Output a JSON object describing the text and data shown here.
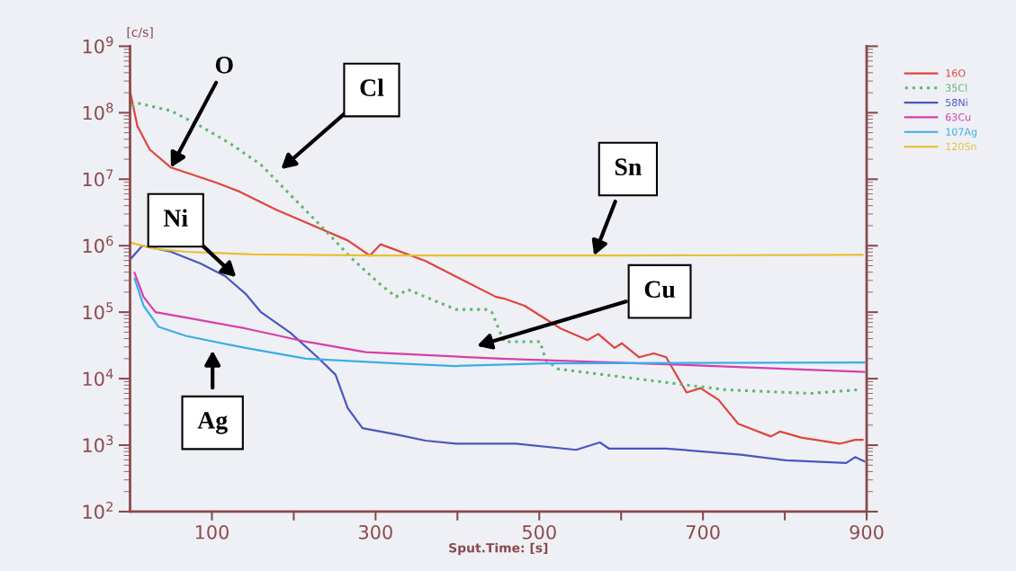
{
  "chart_data": {
    "type": "line",
    "xlabel": "Sput.Time: [s]",
    "ylabel": "[c/s]",
    "log": "y",
    "legend": "right",
    "grid": false,
    "marker": "none",
    "xlim": [
      0,
      900
    ],
    "xticks": [
      {
        "value": 100,
        "label": "100"
      },
      {
        "value": 200,
        "label": null
      },
      {
        "value": 300,
        "label": "300"
      },
      {
        "value": 400,
        "label": null
      },
      {
        "value": 500,
        "label": "500"
      },
      {
        "value": 600,
        "label": null
      },
      {
        "value": 700,
        "label": "700"
      },
      {
        "value": 800,
        "label": null
      },
      {
        "value": 900,
        "label": "900"
      }
    ],
    "ylim": [
      100,
      1000000000
    ],
    "yticks": [
      {
        "value": 100,
        "label": "10$^{2}$"
      },
      {
        "value": 1000,
        "label": "10$^{3}$"
      },
      {
        "value": 10000,
        "label": "10$^{4}$"
      },
      {
        "value": 100000,
        "label": "10$^{5}$"
      },
      {
        "value": 1000000,
        "label": "10$^{6}$"
      },
      {
        "value": 10000000,
        "label": "10$^{7}$"
      },
      {
        "value": 100000000,
        "label": "10$^{8}$"
      },
      {
        "value": 1000000000,
        "label": "10$^{9}$"
      }
    ],
    "series": [
      {
        "name": "16O",
        "color": "#e0453c",
        "line_style": "solid",
        "x": [
          0,
          9,
          24,
          50,
          105,
          134,
          178,
          266,
          293,
          306,
          361,
          447,
          457,
          482,
          526,
          559,
          572,
          592,
          601,
          622,
          640,
          655,
          680,
          697,
          719,
          743,
          783,
          794,
          820,
          867,
          886,
          895
        ],
        "values": [
          210000000,
          63000000,
          28000000,
          15000000,
          8900000,
          6500000,
          3500000,
          1200000,
          710000,
          1050000,
          590000,
          170000,
          160000,
          125000,
          57000,
          38000,
          47000,
          29000,
          34000,
          21000,
          24000,
          21000,
          6200,
          7200,
          4800,
          2100,
          1350,
          1600,
          1300,
          1050,
          1200,
          1200
        ]
      },
      {
        "name": "35Cl",
        "color": "#5fb86a",
        "line_style": "dotted",
        "x": [
          2,
          9,
          50,
          86,
          123,
          160,
          196,
          233,
          270,
          306,
          325,
          339,
          398,
          435,
          442,
          457,
          501,
          508,
          523,
          618,
          728,
          831,
          889
        ],
        "values": [
          125000000,
          140000000,
          107000000,
          63000000,
          34000000,
          16500000,
          5800000,
          2000000,
          660000,
          260000,
          170000,
          220000,
          110000,
          110000,
          100000,
          36000,
          36000,
          19000,
          14000,
          10000,
          6800,
          6000,
          6800
        ]
      },
      {
        "name": "58Ni",
        "color": "#4a56c0",
        "line_style": "solid",
        "x": [
          2,
          15,
          50,
          86,
          116,
          141,
          160,
          196,
          229,
          251,
          266,
          284,
          325,
          361,
          398,
          453,
          471,
          545,
          574,
          585,
          655,
          746,
          801,
          875,
          886,
          897
        ],
        "values": [
          660000,
          1000000,
          810000,
          540000,
          350000,
          190000,
          100000,
          49000,
          21000,
          11500,
          3600,
          1800,
          1450,
          1170,
          1050,
          1050,
          1050,
          850,
          1100,
          890,
          890,
          720,
          590,
          540,
          660,
          570
        ]
      },
      {
        "name": "63Cu",
        "color": "#d63fa8",
        "line_style": "solid",
        "x": [
          5.5,
          16.5,
          31,
          68,
          141,
          215,
          288,
          453,
          655,
          897
        ],
        "values": [
          390000,
          170000,
          100000,
          83000,
          57000,
          36000,
          25000,
          20000,
          16500,
          12600
        ]
      },
      {
        "name": "107Ag",
        "color": "#3aaee8",
        "line_style": "solid",
        "x": [
          5.5,
          16.5,
          35,
          68,
          141,
          215,
          325,
          398,
          508,
          897
        ],
        "values": [
          320000,
          125000,
          60000,
          44000,
          29000,
          20000,
          17000,
          15500,
          17000,
          17500
        ]
      },
      {
        "name": "120Sn",
        "color": "#e8c030",
        "line_style": "solid",
        "x": [
          2,
          30,
          68,
          150,
          300,
          600,
          895
        ],
        "values": [
          1100000,
          900000,
          810000,
          740000,
          710000,
          710000,
          730000
        ]
      }
    ],
    "annotations": [
      {
        "text": "O",
        "x": 50,
        "y": 15000000
      },
      "Cl",
      "Ni",
      {
        "text": "Sn",
        "x": 567,
        "y": 710000
      },
      "Cu",
      "Ag"
    ]
  }
}
